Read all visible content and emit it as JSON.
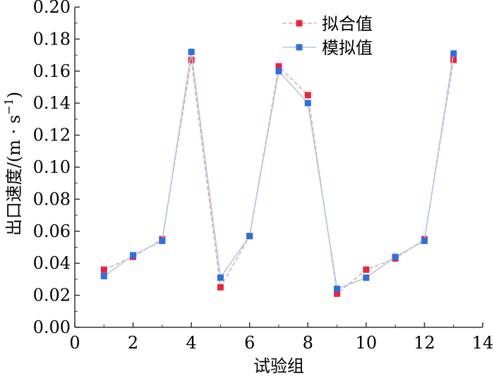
{
  "chart_data": {
    "type": "line",
    "xlabel": "试验组",
    "ylabel": "出口速度/(m · s",
    "ylabel_exp": "−1",
    "ylabel_close": ")",
    "xlim": [
      0,
      14
    ],
    "ylim": [
      0,
      0.2
    ],
    "x_ticks": [
      "0",
      "2",
      "4",
      "6",
      "8",
      "10",
      "12",
      "14"
    ],
    "y_ticks": [
      "0.00",
      "0.02",
      "0.04",
      "0.06",
      "0.08",
      "0.10",
      "0.12",
      "0.14",
      "0.16",
      "0.18",
      "0.20"
    ],
    "legend_position": "top-right",
    "grid": false,
    "x": [
      1,
      2,
      3,
      4,
      5,
      6,
      7,
      8,
      9,
      10,
      11,
      12,
      13
    ],
    "series": [
      {
        "name": "拟合值",
        "color": "#e8253a",
        "line_color": "#e6a8b4",
        "values": [
          0.036,
          0.044,
          0.055,
          0.167,
          0.025,
          0.057,
          0.163,
          0.145,
          0.021,
          0.036,
          0.043,
          0.055,
          0.167
        ]
      },
      {
        "name": "模拟值",
        "color": "#2e6fe0",
        "line_color": "#b4c6ec",
        "values": [
          0.032,
          0.045,
          0.054,
          0.172,
          0.031,
          0.057,
          0.16,
          0.14,
          0.024,
          0.031,
          0.044,
          0.054,
          0.171
        ]
      }
    ]
  }
}
